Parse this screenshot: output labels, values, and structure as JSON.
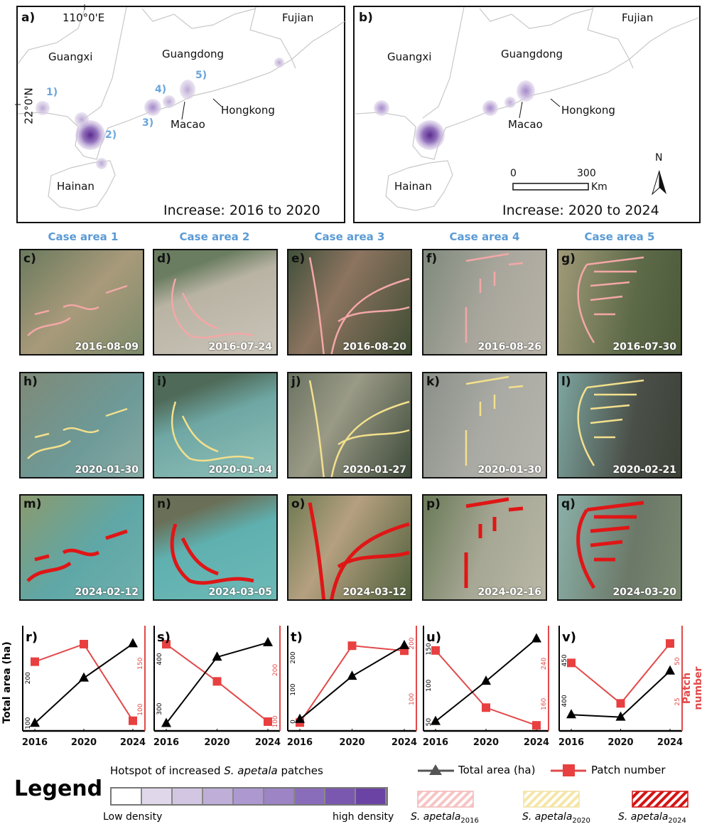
{
  "maps": [
    {
      "label": "a)",
      "lon": "110°0'E",
      "lat": "22°0'N",
      "provinces": [
        "Guangxi",
        "Guangdong",
        "Fujian",
        "Hainan"
      ],
      "cities": [
        "Macao",
        "Hongkong"
      ],
      "sites": [
        "1)",
        "2)",
        "3)",
        "4)",
        "5)"
      ],
      "caption": "Increase: 2016 to 2020"
    },
    {
      "label": "b)",
      "provinces": [
        "Guangxi",
        "Guangdong",
        "Fujian",
        "Hainan"
      ],
      "cities": [
        "Macao",
        "Hongkong"
      ],
      "scale": {
        "zero": "0",
        "max": "300",
        "unit": "Km"
      },
      "north": "N",
      "caption": "Increase: 2020 to 2024"
    }
  ],
  "case_areas": [
    "Case area 1",
    "Case area 2",
    "Case area 3",
    "Case area 4",
    "Case area 5"
  ],
  "tiles": [
    [
      {
        "label": "c)",
        "date": "2016-08-09"
      },
      {
        "label": "d)",
        "date": "2016-07-24"
      },
      {
        "label": "e)",
        "date": "2016-08-20"
      },
      {
        "label": "f)",
        "date": "2016-08-26"
      },
      {
        "label": "g)",
        "date": "2016-07-30"
      }
    ],
    [
      {
        "label": "h)",
        "date": "2020-01-30"
      },
      {
        "label": "i)",
        "date": "2020-01-04"
      },
      {
        "label": "j)",
        "date": "2020-01-27"
      },
      {
        "label": "k)",
        "date": "2020-01-30"
      },
      {
        "label": "l)",
        "date": "2020-02-21"
      }
    ],
    [
      {
        "label": "m)",
        "date": "2024-02-12"
      },
      {
        "label": "n)",
        "date": "2024-03-05"
      },
      {
        "label": "o)",
        "date": "2024-03-12"
      },
      {
        "label": "p)",
        "date": "2024-02-16"
      },
      {
        "label": "q)",
        "date": "2024-03-20"
      }
    ]
  ],
  "overlay_colors": {
    "2016": "#f4a7a7",
    "2020": "#f3e08c",
    "2024": "#e01616"
  },
  "chart_data": [
    {
      "type": "line",
      "label": "r)",
      "x": [
        2016,
        2020,
        2024
      ],
      "area": [
        100,
        200,
        276
      ],
      "area_ylim": [
        83,
        316
      ],
      "area_ticks": [
        100,
        200
      ],
      "patch": [
        152,
        171,
        88
      ],
      "patch_ylim": [
        77,
        191
      ],
      "patch_ticks": [
        100,
        150
      ]
    },
    {
      "type": "line",
      "label": "s)",
      "x": [
        2016,
        2020,
        2024
      ],
      "area": [
        271,
        404,
        433
      ],
      "area_ylim": [
        256,
        467
      ],
      "area_ticks": [
        300,
        400
      ],
      "patch": [
        250,
        178,
        100
      ],
      "patch_ylim": [
        82,
        286
      ],
      "patch_ticks": [
        100,
        200
      ]
    },
    {
      "type": "line",
      "label": "t)",
      "x": [
        2016,
        2020,
        2024
      ],
      "area": [
        7,
        142,
        238
      ],
      "area_ylim": [
        -29,
        300
      ],
      "area_ticks": [
        0,
        100,
        200
      ],
      "patch": [
        58,
        196,
        187
      ],
      "patch_ylim": [
        43,
        232
      ],
      "patch_ticks": [
        100,
        200
      ]
    },
    {
      "type": "line",
      "label": "u)",
      "x": [
        2016,
        2020,
        2024
      ],
      "area": [
        51,
        106,
        164
      ],
      "area_ylim": [
        38,
        182
      ],
      "area_ticks": [
        50,
        100,
        150
      ],
      "patch": [
        266,
        153,
        118
      ],
      "patch_ylim": [
        107,
        315
      ],
      "patch_ticks": [
        160,
        240
      ]
    },
    {
      "type": "line",
      "label": "v)",
      "x": [
        2016,
        2020,
        2024
      ],
      "area": [
        383,
        380,
        437
      ],
      "area_ylim": [
        363,
        493
      ],
      "area_ticks": [
        400,
        450
      ],
      "patch": [
        49,
        24,
        61
      ],
      "patch_ylim": [
        7,
        72
      ],
      "patch_ticks": [
        25,
        50
      ]
    }
  ],
  "axes": {
    "left": "Total area (ha)",
    "right": "Patch number",
    "area_color": "#000000",
    "patch_color": "#e24a4a"
  },
  "legend": {
    "title": "Legend",
    "hotspot_pre": "Hotspot of increased ",
    "species": "S. apetala",
    "hotspot_post": " patches",
    "low": "Low density",
    "high": "high density",
    "area": "Total area (ha)",
    "patch": "Patch number",
    "years": [
      "2016",
      "2020",
      "2024"
    ],
    "ramp": [
      "#ffffff",
      "#e0d8ea",
      "#d2c6e2",
      "#bfaed8",
      "#ad98cf",
      "#9c84c5",
      "#8a6dba",
      "#7a58af",
      "#6b43a4"
    ]
  }
}
